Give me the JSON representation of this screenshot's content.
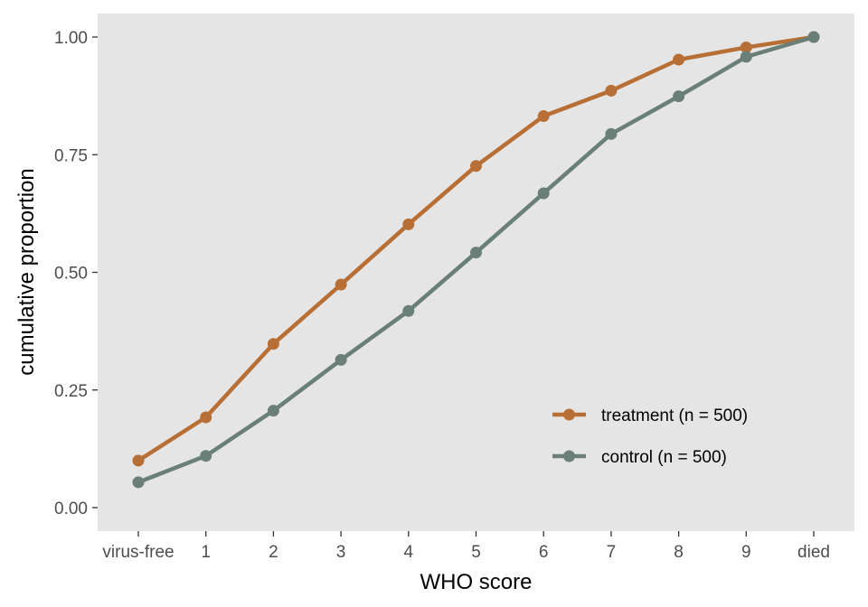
{
  "chart_data": {
    "type": "line",
    "title": "",
    "xlabel": "WHO score",
    "ylabel": "cumulative proportion",
    "categories": [
      "virus-free",
      "1",
      "2",
      "3",
      "4",
      "5",
      "6",
      "7",
      "8",
      "9",
      "died"
    ],
    "ylim": [
      0,
      1
    ],
    "yticks": [
      0,
      0.25,
      0.5,
      0.75,
      1
    ],
    "ytick_labels": [
      "0.00",
      "0.25",
      "0.50",
      "0.75",
      "1.00"
    ],
    "grid": false,
    "legend_position": "bottom-right",
    "background": "#e5e5e5",
    "series": [
      {
        "name": "treatment (n = 500)",
        "color": "#b86f35",
        "values": [
          0.1,
          0.192,
          0.348,
          0.474,
          0.602,
          0.726,
          0.832,
          0.886,
          0.952,
          0.978,
          1.0
        ]
      },
      {
        "name": "control (n = 500)",
        "color": "#6a7f78",
        "values": [
          0.054,
          0.11,
          0.206,
          0.314,
          0.418,
          0.542,
          0.668,
          0.794,
          0.874,
          0.958,
          1.0
        ]
      }
    ]
  }
}
